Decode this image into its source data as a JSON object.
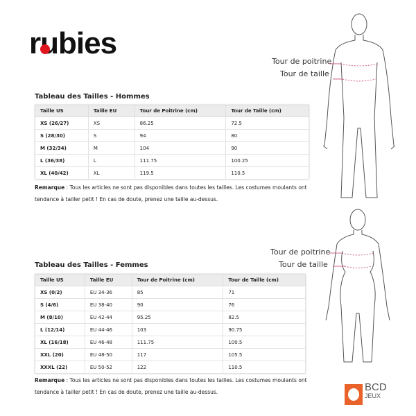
{
  "brand": {
    "logo_text": "rubies",
    "accent": "#e0161e"
  },
  "men": {
    "title": "Tableau des Tailles - Hommes",
    "headers": [
      "Taille US",
      "Taille EU",
      "Tour de Poitrine (cm)",
      "Tour de Taille (cm)"
    ],
    "rows": [
      [
        "XS (26/27)",
        "XS",
        "86.25",
        "72.5"
      ],
      [
        "S (28/30)",
        "S",
        "94",
        "80"
      ],
      [
        "M (32/34)",
        "M",
        "104",
        "90"
      ],
      [
        "L (36/38)",
        "L",
        "111.75",
        "100.25"
      ],
      [
        "XL (40/42)",
        "XL",
        "119.5",
        "110.5"
      ]
    ],
    "note_label": "Remarque",
    "note": " : Tous les articles ne sont pas disponibles dans toutes les tailles. Les costumes moulants ont tendance à tailler petit ! En cas de doute, prenez une taille au-dessus.",
    "figure_labels": {
      "chest": "Tour de poitrine",
      "waist": "Tour de taille"
    }
  },
  "women": {
    "title": "Tableau des Tailles - Femmes",
    "headers": [
      "Taille US",
      "Taille EU",
      "Tour de Poitrine (cm)",
      "Tour de Taille (cm)"
    ],
    "rows": [
      [
        "XS (0/2)",
        "EU 34-36",
        "85",
        "71"
      ],
      [
        "S (4/6)",
        "EU 38-40",
        "90",
        "76"
      ],
      [
        "M (8/10)",
        "EU 42-44",
        "95.25",
        "82.5"
      ],
      [
        "L (12/14)",
        "EU 44-46",
        "103",
        "90.75"
      ],
      [
        "XL (16/18)",
        "EU 46-48",
        "111.75",
        "100.5"
      ],
      [
        "XXL (20)",
        "EU 48-50",
        "117",
        "105.5"
      ],
      [
        "XXXL (22)",
        "EU 50-52",
        "122",
        "110.5"
      ]
    ],
    "note_label": "Remarque",
    "note": " : Tous les articles ne sont pas disponibles dans toutes les tailles. Les costumes moulants ont tendance à tailler petit ! En cas de doute, prenez une taille au-dessus.",
    "figure_labels": {
      "chest": "Tour de poitrine",
      "waist": "Tour de taille"
    }
  },
  "footer_logo": {
    "line1": "BCD",
    "line2": "JEUX",
    "color": "#e8622a"
  }
}
